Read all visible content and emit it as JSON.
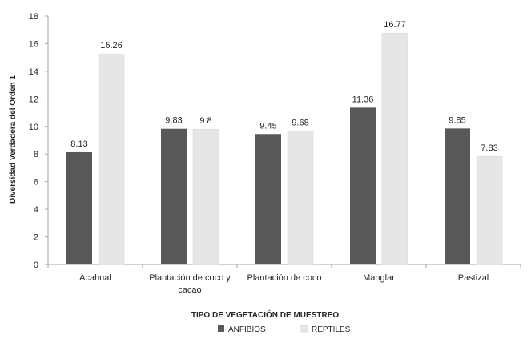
{
  "chart_data": {
    "type": "bar",
    "categories": [
      "Acahual",
      "Plantación de coco y cacao",
      "Plantación de coco",
      "Manglar",
      "Pastizal"
    ],
    "category_lines": [
      [
        "Acahual"
      ],
      [
        "Plantación de coco y",
        "cacao"
      ],
      [
        "Plantación de coco"
      ],
      [
        "Manglar"
      ],
      [
        "Pastizal"
      ]
    ],
    "series": [
      {
        "name": "ANFIBIOS",
        "values": [
          8.13,
          9.83,
          9.45,
          11.36,
          9.85
        ],
        "labels": [
          "8.13",
          "9.83",
          "9.45",
          "11.36",
          "9.85"
        ],
        "color": "#595959"
      },
      {
        "name": "REPTILES",
        "values": [
          15.26,
          9.8,
          9.68,
          16.77,
          7.83
        ],
        "labels": [
          "15.26",
          "9.8",
          "9.68",
          "16.77",
          "7.83"
        ],
        "color": "#e6e6e6"
      }
    ],
    "xlabel": "TIPO DE VEGETACIÓN DE MUESTREO",
    "ylabel": "Diversidad Verdadera del Orden 1",
    "ylim": [
      0,
      18
    ],
    "yticks": [
      0,
      2,
      4,
      6,
      8,
      10,
      12,
      14,
      16,
      18
    ],
    "grid": false,
    "legend": "bottom"
  }
}
